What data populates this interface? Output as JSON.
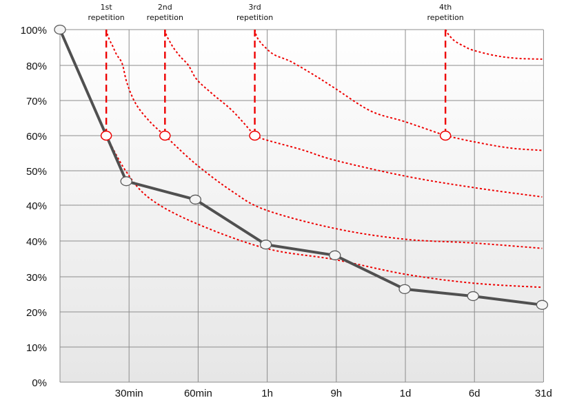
{
  "colors": {
    "main_line": "#505050",
    "repetition": "#ee0000",
    "grid": "#8c8c8c",
    "plot_bg_top": "#ffffff",
    "plot_bg_bottom": "#e6e6e6"
  },
  "chart_data": {
    "type": "line",
    "title": "",
    "xlabel": "",
    "ylabel": "",
    "grid": true,
    "x_ticks": [
      "30min",
      "60min",
      "1h",
      "9h",
      "1d",
      "6d",
      "31d"
    ],
    "y_ticks": [
      "100%",
      "80%",
      "70%",
      "60%",
      "50%",
      "40%",
      "40%",
      "30%",
      "20%",
      "10%",
      "0%"
    ],
    "series": [
      {
        "style": "solid",
        "points": [
          [
            0,
            100
          ],
          [
            0.96,
            48
          ],
          [
            1.96,
            44.5
          ],
          [
            2.98,
            36
          ],
          [
            3.98,
            34
          ],
          [
            4.99,
            26.5
          ],
          [
            5.98,
            24.5
          ],
          [
            6.98,
            22
          ]
        ]
      }
    ],
    "repetitions": [
      {
        "label_lines": [
          "1st",
          "repetition"
        ],
        "x": 0.67,
        "marker_y": 60,
        "curve": [
          [
            0.67,
            60
          ],
          [
            0.95,
            50
          ],
          [
            1.3,
            44.7
          ],
          [
            1.96,
            40
          ],
          [
            2.98,
            35.3
          ],
          [
            3.98,
            33.2
          ],
          [
            4.99,
            30.5
          ],
          [
            5.98,
            28.2
          ],
          [
            6.98,
            27
          ]
        ]
      },
      {
        "label_lines": [
          "2nd",
          "repetition"
        ],
        "x": 1.52,
        "marker_y": 60,
        "curve": [
          [
            1.52,
            60
          ],
          [
            1.96,
            52
          ],
          [
            2.5,
            46
          ],
          [
            2.98,
            42.5
          ],
          [
            3.98,
            39
          ],
          [
            4.99,
            37
          ],
          [
            5.98,
            36.3
          ],
          [
            6.98,
            35.3
          ]
        ]
      },
      {
        "label_lines": [
          "3rd",
          "repetition"
        ],
        "x": 2.82,
        "marker_y": 60,
        "curve": [
          [
            2.82,
            60
          ],
          [
            2.98,
            58.8
          ],
          [
            3.5,
            56
          ],
          [
            3.98,
            53
          ],
          [
            4.99,
            49
          ],
          [
            5.98,
            46.8
          ],
          [
            6.98,
            45
          ]
        ]
      },
      {
        "label_lines": [
          "4th",
          "repetition"
        ],
        "x": 5.58,
        "marker_y": 60,
        "curve": [
          [
            5.58,
            60
          ],
          [
            5.98,
            58.3
          ],
          [
            6.5,
            56.5
          ],
          [
            6.98,
            55.8
          ]
        ]
      }
    ],
    "repetition_top_y": 100,
    "repetition_pre_curve": [
      [
        [
          0.67,
          100
        ],
        [
          0.69,
          97
        ],
        [
          0.72,
          94
        ],
        [
          0.76,
          91
        ],
        [
          0.82,
          86
        ],
        [
          0.9,
          81
        ],
        [
          0.97,
          75
        ],
        [
          1.1,
          69
        ],
        [
          1.3,
          64
        ],
        [
          1.52,
          60
        ]
      ],
      [
        [
          1.52,
          100
        ],
        [
          1.54,
          97
        ],
        [
          1.58,
          94
        ],
        [
          1.64,
          90
        ],
        [
          1.74,
          85
        ],
        [
          1.86,
          80
        ],
        [
          1.98,
          76
        ],
        [
          2.2,
          72
        ],
        [
          2.5,
          67
        ],
        [
          2.82,
          60
        ]
      ],
      [
        [
          2.82,
          100
        ],
        [
          2.84,
          97
        ],
        [
          2.88,
          94
        ],
        [
          2.96,
          90.5
        ],
        [
          3.1,
          86
        ],
        [
          3.35,
          82
        ],
        [
          3.7,
          77
        ],
        [
          3.98,
          73.5
        ],
        [
          4.5,
          67
        ],
        [
          4.99,
          64
        ],
        [
          5.58,
          60
        ]
      ],
      [
        [
          5.58,
          100
        ],
        [
          5.63,
          97
        ],
        [
          5.72,
          93.5
        ],
        [
          5.86,
          90.5
        ],
        [
          5.98,
          88.5
        ],
        [
          6.3,
          85.5
        ],
        [
          6.6,
          84
        ],
        [
          6.98,
          83.5
        ]
      ]
    ]
  }
}
